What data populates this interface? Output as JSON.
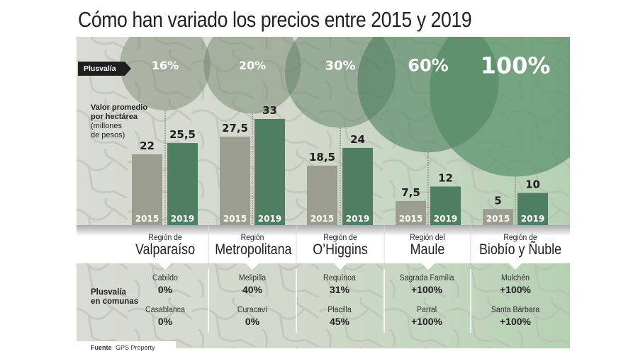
{
  "title": "Cómo han variado los precios entre 2015 y 2019",
  "legend": {
    "plusvalia_tag": "Plusvalía",
    "value_title_1": "Valor promedio",
    "value_title_2": "por hectárea",
    "value_unit_1": "(millones",
    "value_unit_2": "de pesos)",
    "comunas_label_1": "Plusvalía",
    "comunas_label_2": "en comunas"
  },
  "source": {
    "label": "Fuente",
    "value": "GPS Property"
  },
  "colors": {
    "bar_2015": "#9a9d8f",
    "bar_2019": "#4f7e63",
    "circle": "#4d7f5e",
    "accent_dark": "#1f1f1f"
  },
  "chart_data": {
    "type": "bar",
    "title": "Cómo han variado los precios entre 2015 y 2019",
    "ylabel": "Valor promedio por hectárea (millones de pesos)",
    "categories": [
      "Valparaíso",
      "Metropolitana",
      "O'Higgins",
      "Maule",
      "Biobío y Ñuble"
    ],
    "series": [
      {
        "name": "2015",
        "values": [
          22,
          27.5,
          18.5,
          7.5,
          5
        ],
        "labels": [
          "22",
          "27,5",
          "18,5",
          "7,5",
          "5"
        ]
      },
      {
        "name": "2019",
        "values": [
          25.5,
          33,
          24,
          12,
          10
        ],
        "labels": [
          "25,5",
          "33",
          "24",
          "12",
          "10"
        ]
      }
    ],
    "plusvalia": {
      "values": [
        16,
        20,
        30,
        60,
        100
      ],
      "labels": [
        "16%",
        "20%",
        "30%",
        "60%",
        "100%"
      ]
    },
    "ylim": [
      0,
      33
    ],
    "grid": false
  },
  "regions": [
    {
      "prefix": "Región de",
      "name": "Valparaíso",
      "comunas": [
        {
          "name": "Cabildo",
          "value": "0%"
        },
        {
          "name": "Casablanca",
          "value": "0%"
        }
      ]
    },
    {
      "prefix": "Región",
      "name": "Metropolitana",
      "comunas": [
        {
          "name": "Melipilla",
          "value": "40%"
        },
        {
          "name": "Curacaví",
          "value": "0%"
        }
      ]
    },
    {
      "prefix": "Región de",
      "name": "O’Higgins",
      "comunas": [
        {
          "name": "Requínoa",
          "value": "31%"
        },
        {
          "name": "Placilla",
          "value": "45%"
        }
      ]
    },
    {
      "prefix": "Región del",
      "name": "Maule",
      "comunas": [
        {
          "name": "Sagrada Familia",
          "value": "+100%"
        },
        {
          "name": "Parral",
          "value": "+100%"
        }
      ]
    },
    {
      "prefix": "Región de",
      "name": "Biobío y Ñuble",
      "comunas": [
        {
          "name": "Mulchén",
          "value": "+100%"
        },
        {
          "name": "Santa Bárbara",
          "value": "+100%"
        }
      ]
    }
  ]
}
